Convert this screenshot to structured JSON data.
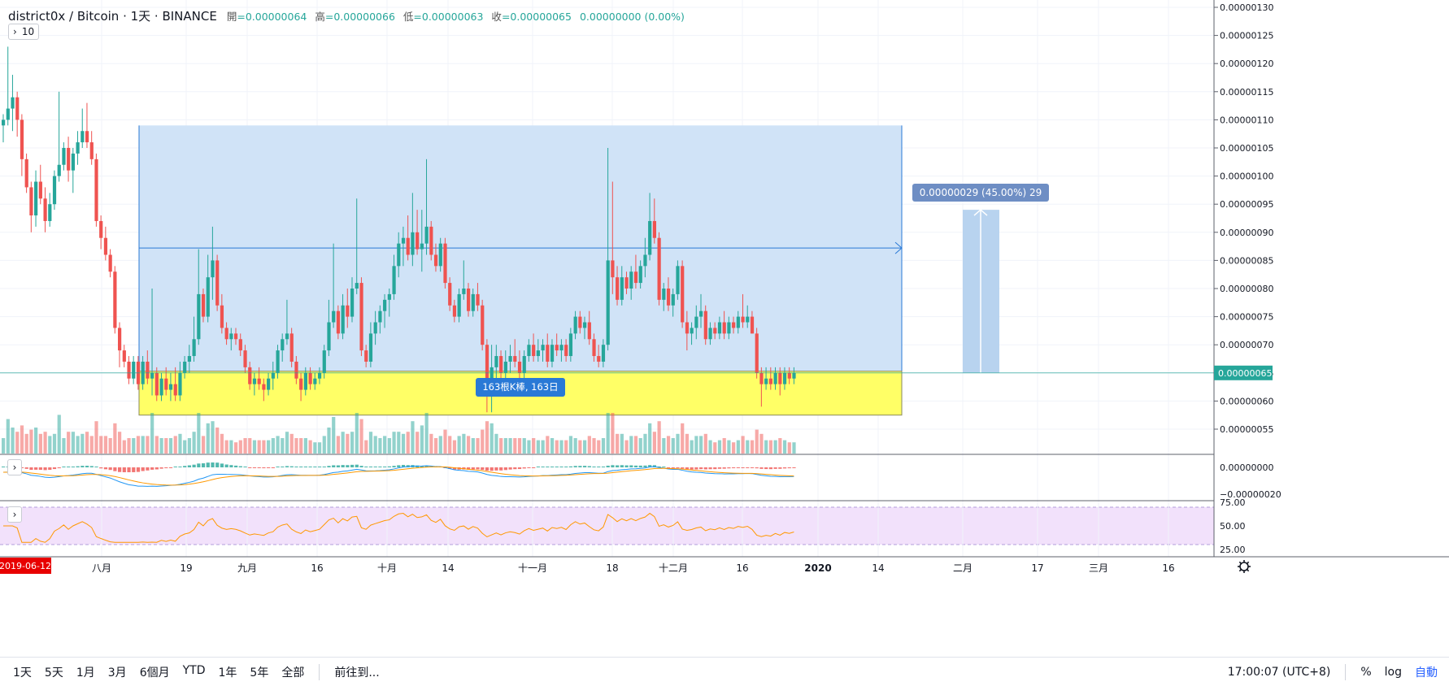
{
  "header": {
    "title": "district0x / Bitcoin · 1天 · BINANCE",
    "ohlc": [
      {
        "label": "開",
        "value": "=0.00000064"
      },
      {
        "label": "高",
        "value": "=0.00000066"
      },
      {
        "label": "低",
        "value": "=0.00000063"
      },
      {
        "label": "收",
        "value": "=0.00000065"
      }
    ],
    "change": "0.00000000 (0.00%)"
  },
  "indicator_toggle": {
    "label": "10"
  },
  "price_axis": {
    "ticks": [
      "0.00000130",
      "0.00000125",
      "0.00000120",
      "0.00000115",
      "0.00000110",
      "0.00000105",
      "0.00000100",
      "0.00000095",
      "0.00000090",
      "0.00000085",
      "0.00000080",
      "0.00000075",
      "0.00000070",
      "0.00000065",
      "0.00000060",
      "0.00000055"
    ],
    "current_price": "0.00000065"
  },
  "measure": {
    "label": "0.00000029 (45.00%) 29"
  },
  "range_tool": {
    "label": "163根K棒, 163日"
  },
  "macd_axis": [
    "0.00000000",
    "−0.00000020"
  ],
  "rsi_axis": [
    "75.00",
    "50.00",
    "25.00"
  ],
  "time_axis": {
    "start_badge": "2019-06-12",
    "labels": [
      "八月",
      "19",
      "九月",
      "16",
      "十月",
      "14",
      "十一月",
      "18",
      "十二月",
      "16",
      "2020",
      "14",
      "二月",
      "17",
      "三月",
      "16"
    ]
  },
  "bottom_bar": {
    "ranges": [
      "1天",
      "5天",
      "1月",
      "3月",
      "6個月",
      "YTD",
      "1年",
      "5年",
      "全部"
    ],
    "goto": "前往到...",
    "time": "17:00:07 (UTC+8)",
    "percent": "%",
    "log": "log",
    "auto": "自動"
  },
  "colors": {
    "up": "#26a69a",
    "down": "#ef5350",
    "range_fill": "#cde2f7",
    "zone_fill": "#ffff66",
    "rsi_band": "#f2e1fb",
    "measure_badge": "#6e8ec4",
    "range_badge": "#2979d6",
    "start_badge": "#e80000"
  },
  "chart_data": {
    "type": "candlestick",
    "interval": "1天",
    "first_date": "2019-06-12",
    "price_unit_note": "",
    "ohlc": [
      [
        1.09,
        1.11,
        1.06,
        1.1
      ],
      [
        1.1,
        1.23,
        1.09,
        1.12
      ],
      [
        1.12,
        1.18,
        1.08,
        1.14
      ],
      [
        1.14,
        1.15,
        1.07,
        1.1
      ],
      [
        1.1,
        1.11,
        1.0,
        1.03
      ],
      [
        1.03,
        1.04,
        0.97,
        0.98
      ],
      [
        0.98,
        0.99,
        0.9,
        0.93
      ],
      [
        0.93,
        1.01,
        0.91,
        0.99
      ],
      [
        0.99,
        1.02,
        0.95,
        0.96
      ],
      [
        0.96,
        0.98,
        0.9,
        0.92
      ],
      [
        0.92,
        0.97,
        0.91,
        0.95
      ],
      [
        0.95,
        1.01,
        0.94,
        1.0
      ],
      [
        1.0,
        1.15,
        0.99,
        1.02
      ],
      [
        1.02,
        1.06,
        1.01,
        1.05
      ],
      [
        1.05,
        1.07,
        0.99,
        1.01
      ],
      [
        1.01,
        1.05,
        0.97,
        1.04
      ],
      [
        1.04,
        1.08,
        1.02,
        1.06
      ],
      [
        1.06,
        1.12,
        1.05,
        1.08
      ],
      [
        1.08,
        1.13,
        1.05,
        1.06
      ],
      [
        1.06,
        1.08,
        1.02,
        1.03
      ],
      [
        1.03,
        1.04,
        0.91,
        0.92
      ],
      [
        0.92,
        0.93,
        0.87,
        0.89
      ],
      [
        0.89,
        0.91,
        0.85,
        0.86
      ],
      [
        0.86,
        0.87,
        0.82,
        0.83
      ],
      [
        0.83,
        0.84,
        0.72,
        0.73
      ],
      [
        0.73,
        0.74,
        0.66,
        0.69
      ],
      [
        0.69,
        0.7,
        0.66,
        0.67
      ],
      [
        0.67,
        0.68,
        0.63,
        0.64
      ],
      [
        0.64,
        0.68,
        0.63,
        0.67
      ],
      [
        0.67,
        0.68,
        0.62,
        0.63
      ],
      [
        0.63,
        0.68,
        0.62,
        0.67
      ],
      [
        0.67,
        0.69,
        0.63,
        0.64
      ],
      [
        0.64,
        0.8,
        0.61,
        0.65
      ],
      [
        0.65,
        0.66,
        0.6,
        0.61
      ],
      [
        0.61,
        0.65,
        0.6,
        0.64
      ],
      [
        0.64,
        0.66,
        0.61,
        0.62
      ],
      [
        0.62,
        0.65,
        0.6,
        0.63
      ],
      [
        0.63,
        0.66,
        0.6,
        0.61
      ],
      [
        0.61,
        0.67,
        0.6,
        0.65
      ],
      [
        0.65,
        0.68,
        0.64,
        0.67
      ],
      [
        0.67,
        0.7,
        0.65,
        0.68
      ],
      [
        0.68,
        0.75,
        0.67,
        0.71
      ],
      [
        0.71,
        0.87,
        0.7,
        0.79
      ],
      [
        0.79,
        0.8,
        0.74,
        0.75
      ],
      [
        0.75,
        0.86,
        0.74,
        0.82
      ],
      [
        0.82,
        0.91,
        0.78,
        0.85
      ],
      [
        0.85,
        0.86,
        0.76,
        0.77
      ],
      [
        0.77,
        0.79,
        0.72,
        0.73
      ],
      [
        0.73,
        0.74,
        0.7,
        0.71
      ],
      [
        0.71,
        0.73,
        0.69,
        0.72
      ],
      [
        0.72,
        0.73,
        0.7,
        0.71
      ],
      [
        0.71,
        0.72,
        0.68,
        0.69
      ],
      [
        0.69,
        0.7,
        0.65,
        0.66
      ],
      [
        0.66,
        0.67,
        0.62,
        0.63
      ],
      [
        0.63,
        0.65,
        0.61,
        0.64
      ],
      [
        0.64,
        0.66,
        0.62,
        0.63
      ],
      [
        0.63,
        0.64,
        0.6,
        0.62
      ],
      [
        0.62,
        0.65,
        0.61,
        0.64
      ],
      [
        0.64,
        0.67,
        0.62,
        0.65
      ],
      [
        0.65,
        0.7,
        0.64,
        0.69
      ],
      [
        0.69,
        0.72,
        0.67,
        0.71
      ],
      [
        0.71,
        0.78,
        0.7,
        0.72
      ],
      [
        0.72,
        0.73,
        0.66,
        0.67
      ],
      [
        0.67,
        0.68,
        0.63,
        0.64
      ],
      [
        0.64,
        0.65,
        0.6,
        0.62
      ],
      [
        0.62,
        0.66,
        0.61,
        0.65
      ],
      [
        0.65,
        0.66,
        0.62,
        0.63
      ],
      [
        0.63,
        0.65,
        0.62,
        0.64
      ],
      [
        0.64,
        0.66,
        0.63,
        0.65
      ],
      [
        0.65,
        0.7,
        0.64,
        0.69
      ],
      [
        0.69,
        0.78,
        0.68,
        0.74
      ],
      [
        0.74,
        0.88,
        0.73,
        0.76
      ],
      [
        0.76,
        0.77,
        0.71,
        0.72
      ],
      [
        0.72,
        0.79,
        0.71,
        0.77
      ],
      [
        0.77,
        0.8,
        0.73,
        0.75
      ],
      [
        0.75,
        0.82,
        0.74,
        0.8
      ],
      [
        0.8,
        0.96,
        0.79,
        0.81
      ],
      [
        0.81,
        0.82,
        0.68,
        0.69
      ],
      [
        0.69,
        0.7,
        0.66,
        0.67
      ],
      [
        0.67,
        0.74,
        0.66,
        0.72
      ],
      [
        0.72,
        0.76,
        0.7,
        0.74
      ],
      [
        0.74,
        0.77,
        0.72,
        0.76
      ],
      [
        0.76,
        0.79,
        0.73,
        0.78
      ],
      [
        0.78,
        0.8,
        0.75,
        0.79
      ],
      [
        0.79,
        0.86,
        0.78,
        0.84
      ],
      [
        0.84,
        0.9,
        0.82,
        0.88
      ],
      [
        0.88,
        0.91,
        0.84,
        0.89
      ],
      [
        0.89,
        0.93,
        0.85,
        0.86
      ],
      [
        0.86,
        0.97,
        0.84,
        0.9
      ],
      [
        0.9,
        0.94,
        0.86,
        0.87
      ],
      [
        0.87,
        0.94,
        0.83,
        0.88
      ],
      [
        0.88,
        1.03,
        0.86,
        0.91
      ],
      [
        0.91,
        0.92,
        0.85,
        0.86
      ],
      [
        0.86,
        0.88,
        0.83,
        0.84
      ],
      [
        0.84,
        0.89,
        0.83,
        0.88
      ],
      [
        0.88,
        0.89,
        0.8,
        0.81
      ],
      [
        0.81,
        0.82,
        0.76,
        0.77
      ],
      [
        0.77,
        0.78,
        0.74,
        0.75
      ],
      [
        0.75,
        0.8,
        0.74,
        0.79
      ],
      [
        0.79,
        0.85,
        0.78,
        0.8
      ],
      [
        0.8,
        0.81,
        0.75,
        0.76
      ],
      [
        0.76,
        0.8,
        0.75,
        0.79
      ],
      [
        0.79,
        0.81,
        0.76,
        0.77
      ],
      [
        0.77,
        0.78,
        0.69,
        0.7
      ],
      [
        0.7,
        0.71,
        0.58,
        0.64
      ],
      [
        0.64,
        0.7,
        0.58,
        0.66
      ],
      [
        0.66,
        0.7,
        0.63,
        0.68
      ],
      [
        0.68,
        0.69,
        0.64,
        0.65
      ],
      [
        0.65,
        0.69,
        0.64,
        0.67
      ],
      [
        0.67,
        0.7,
        0.65,
        0.68
      ],
      [
        0.68,
        0.71,
        0.66,
        0.67
      ],
      [
        0.67,
        0.69,
        0.64,
        0.65
      ],
      [
        0.65,
        0.69,
        0.64,
        0.68
      ],
      [
        0.68,
        0.71,
        0.67,
        0.7
      ],
      [
        0.7,
        0.72,
        0.67,
        0.68
      ],
      [
        0.68,
        0.71,
        0.67,
        0.69
      ],
      [
        0.69,
        0.71,
        0.67,
        0.7
      ],
      [
        0.7,
        0.72,
        0.66,
        0.67
      ],
      [
        0.67,
        0.71,
        0.66,
        0.7
      ],
      [
        0.7,
        0.72,
        0.68,
        0.69
      ],
      [
        0.69,
        0.71,
        0.67,
        0.7
      ],
      [
        0.7,
        0.71,
        0.67,
        0.68
      ],
      [
        0.68,
        0.73,
        0.67,
        0.72
      ],
      [
        0.72,
        0.76,
        0.71,
        0.75
      ],
      [
        0.75,
        0.76,
        0.72,
        0.73
      ],
      [
        0.73,
        0.75,
        0.71,
        0.74
      ],
      [
        0.74,
        0.76,
        0.7,
        0.71
      ],
      [
        0.71,
        0.72,
        0.67,
        0.68
      ],
      [
        0.68,
        0.7,
        0.66,
        0.67
      ],
      [
        0.67,
        0.71,
        0.66,
        0.7
      ],
      [
        0.7,
        1.05,
        0.69,
        0.85
      ],
      [
        0.85,
        0.99,
        0.79,
        0.82
      ],
      [
        0.82,
        0.84,
        0.77,
        0.78
      ],
      [
        0.78,
        0.84,
        0.77,
        0.82
      ],
      [
        0.82,
        0.83,
        0.79,
        0.8
      ],
      [
        0.8,
        0.84,
        0.78,
        0.83
      ],
      [
        0.83,
        0.86,
        0.8,
        0.81
      ],
      [
        0.81,
        0.85,
        0.8,
        0.84
      ],
      [
        0.84,
        0.89,
        0.82,
        0.86
      ],
      [
        0.86,
        0.97,
        0.85,
        0.92
      ],
      [
        0.92,
        0.96,
        0.88,
        0.89
      ],
      [
        0.89,
        0.9,
        0.77,
        0.78
      ],
      [
        0.78,
        0.81,
        0.76,
        0.8
      ],
      [
        0.8,
        0.82,
        0.76,
        0.77
      ],
      [
        0.77,
        0.8,
        0.75,
        0.79
      ],
      [
        0.79,
        0.85,
        0.78,
        0.84
      ],
      [
        0.84,
        0.85,
        0.73,
        0.74
      ],
      [
        0.74,
        0.76,
        0.69,
        0.72
      ],
      [
        0.72,
        0.74,
        0.7,
        0.73
      ],
      [
        0.73,
        0.77,
        0.71,
        0.75
      ],
      [
        0.75,
        0.79,
        0.73,
        0.76
      ],
      [
        0.76,
        0.77,
        0.7,
        0.71
      ],
      [
        0.71,
        0.74,
        0.7,
        0.73
      ],
      [
        0.73,
        0.74,
        0.71,
        0.72
      ],
      [
        0.72,
        0.75,
        0.71,
        0.74
      ],
      [
        0.74,
        0.76,
        0.71,
        0.72
      ],
      [
        0.72,
        0.75,
        0.71,
        0.74
      ],
      [
        0.74,
        0.75,
        0.72,
        0.73
      ],
      [
        0.73,
        0.76,
        0.72,
        0.75
      ],
      [
        0.75,
        0.79,
        0.73,
        0.74
      ],
      [
        0.74,
        0.77,
        0.73,
        0.75
      ],
      [
        0.75,
        0.76,
        0.72,
        0.72
      ],
      [
        0.72,
        0.73,
        0.64,
        0.65
      ],
      [
        0.65,
        0.66,
        0.59,
        0.63
      ],
      [
        0.63,
        0.66,
        0.62,
        0.64
      ],
      [
        0.64,
        0.66,
        0.62,
        0.63
      ],
      [
        0.63,
        0.66,
        0.62,
        0.65
      ],
      [
        0.65,
        0.66,
        0.61,
        0.63
      ],
      [
        0.63,
        0.66,
        0.62,
        0.65
      ],
      [
        0.65,
        0.66,
        0.63,
        0.64
      ],
      [
        0.64,
        0.66,
        0.63,
        0.65
      ]
    ]
  }
}
